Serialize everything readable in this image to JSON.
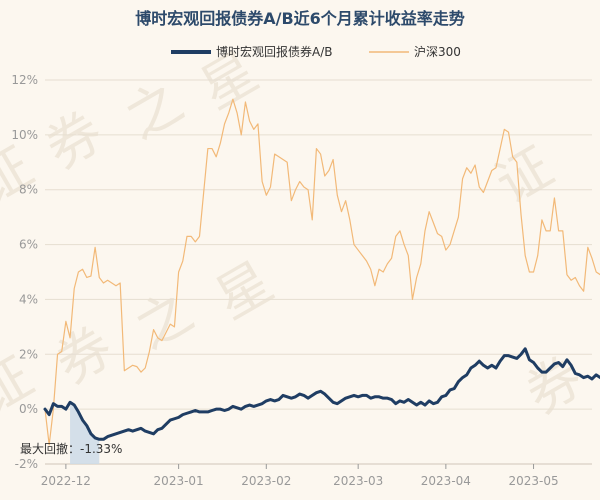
{
  "chart_data": {
    "type": "line",
    "title": "博时宏观回报债券A/B近6个月累计收益率走势",
    "legend_position": "top",
    "ylim": [
      -2,
      12
    ],
    "yticks": [
      -2,
      0,
      2,
      4,
      6,
      8,
      10,
      12
    ],
    "ytick_labels": [
      "-2%",
      "0%",
      "2%",
      "4%",
      "6%",
      "8%",
      "10%",
      "12%"
    ],
    "xticks": [
      5,
      32,
      53,
      75,
      96,
      117
    ],
    "xtick_labels": [
      "2022-12",
      "2023-01",
      "2023-02",
      "2023-03",
      "2023-04",
      "2023-05"
    ],
    "xlim": [
      0,
      131
    ],
    "grid": "horizontal",
    "series": [
      {
        "name": "博时宏观回报债券A/B",
        "color": "#1f3d63",
        "values": [
          0.0,
          -0.2,
          0.2,
          0.1,
          0.1,
          0.0,
          0.25,
          0.15,
          -0.1,
          -0.4,
          -0.6,
          -0.9,
          -1.05,
          -1.1,
          -1.1,
          -1.0,
          -0.95,
          -0.9,
          -0.85,
          -0.8,
          -0.75,
          -0.8,
          -0.75,
          -0.7,
          -0.8,
          -0.85,
          -0.9,
          -0.75,
          -0.7,
          -0.55,
          -0.4,
          -0.35,
          -0.3,
          -0.2,
          -0.15,
          -0.1,
          -0.05,
          -0.1,
          -0.1,
          -0.1,
          -0.05,
          0.0,
          0.0,
          -0.05,
          0.0,
          0.1,
          0.05,
          0.0,
          0.1,
          0.15,
          0.1,
          0.15,
          0.2,
          0.3,
          0.35,
          0.3,
          0.35,
          0.5,
          0.45,
          0.4,
          0.45,
          0.55,
          0.5,
          0.4,
          0.5,
          0.6,
          0.65,
          0.55,
          0.4,
          0.25,
          0.2,
          0.3,
          0.4,
          0.45,
          0.5,
          0.45,
          0.5,
          0.5,
          0.4,
          0.45,
          0.45,
          0.4,
          0.4,
          0.35,
          0.2,
          0.3,
          0.25,
          0.35,
          0.25,
          0.15,
          0.25,
          0.15,
          0.3,
          0.2,
          0.25,
          0.45,
          0.5,
          0.7,
          0.75,
          1.0,
          1.15,
          1.25,
          1.5,
          1.6,
          1.75,
          1.6,
          1.5,
          1.6,
          1.5,
          1.75,
          1.95,
          1.95,
          1.9,
          1.85,
          2.0,
          2.2,
          1.8,
          1.7,
          1.5,
          1.35,
          1.35,
          1.5,
          1.65,
          1.7,
          1.55,
          1.8,
          1.6,
          1.3,
          1.25,
          1.15,
          1.2,
          1.1,
          1.25,
          1.15,
          1.2,
          1.15,
          1.3,
          1.35,
          1.3,
          1.2,
          1.1,
          1.05,
          1.0,
          1.3
        ]
      },
      {
        "name": "沪深300",
        "color": "#f2b978",
        "values": [
          0.0,
          -1.3,
          0.0,
          2.0,
          2.1,
          3.2,
          2.6,
          4.4,
          5.0,
          5.1,
          4.8,
          4.85,
          5.9,
          4.8,
          4.6,
          4.7,
          4.6,
          4.5,
          4.6,
          1.4,
          1.5,
          1.6,
          1.55,
          1.35,
          1.5,
          2.1,
          2.9,
          2.6,
          2.5,
          2.8,
          3.1,
          3.0,
          5.0,
          5.4,
          6.3,
          6.3,
          6.1,
          6.3,
          7.9,
          9.5,
          9.5,
          9.2,
          9.7,
          10.4,
          10.8,
          11.3,
          10.8,
          10.0,
          11.2,
          10.5,
          10.2,
          10.4,
          8.3,
          7.8,
          8.1,
          9.3,
          9.2,
          9.1,
          9.0,
          7.6,
          8.0,
          8.3,
          8.1,
          8.0,
          6.9,
          9.5,
          9.3,
          8.5,
          8.7,
          9.1,
          7.8,
          7.2,
          7.6,
          6.9,
          6.0,
          5.8,
          5.6,
          5.4,
          5.1,
          4.5,
          5.1,
          5.0,
          5.3,
          5.5,
          6.3,
          6.5,
          6.0,
          5.6,
          4.0,
          4.8,
          5.3,
          6.5,
          7.2,
          6.8,
          6.4,
          6.3,
          5.8,
          6.0,
          6.5,
          7.0,
          8.4,
          8.8,
          8.6,
          8.9,
          8.1,
          7.9,
          8.3,
          8.7,
          8.8,
          9.5,
          10.2,
          10.1,
          9.2,
          9.0,
          7.1,
          5.6,
          5.0,
          5.0,
          5.6,
          6.9,
          6.5,
          6.5,
          7.7,
          6.5,
          6.5,
          4.9,
          4.7,
          4.8,
          4.5,
          4.3,
          5.9,
          5.5,
          5.0,
          4.9,
          4.8,
          4.4,
          4.7,
          5.1,
          3.5,
          2.2,
          2.1,
          2.0
        ]
      }
    ],
    "annotations": [
      {
        "text": "最大回撤：-1.33%"
      }
    ]
  },
  "colors": {
    "background": "#fcf7ef",
    "grid": "#e6ded1",
    "drawdown_fill": "#cddae7"
  },
  "watermark": [
    "证",
    "券",
    "之",
    "星",
    "证",
    "券",
    "之",
    "星",
    "证",
    "券"
  ]
}
